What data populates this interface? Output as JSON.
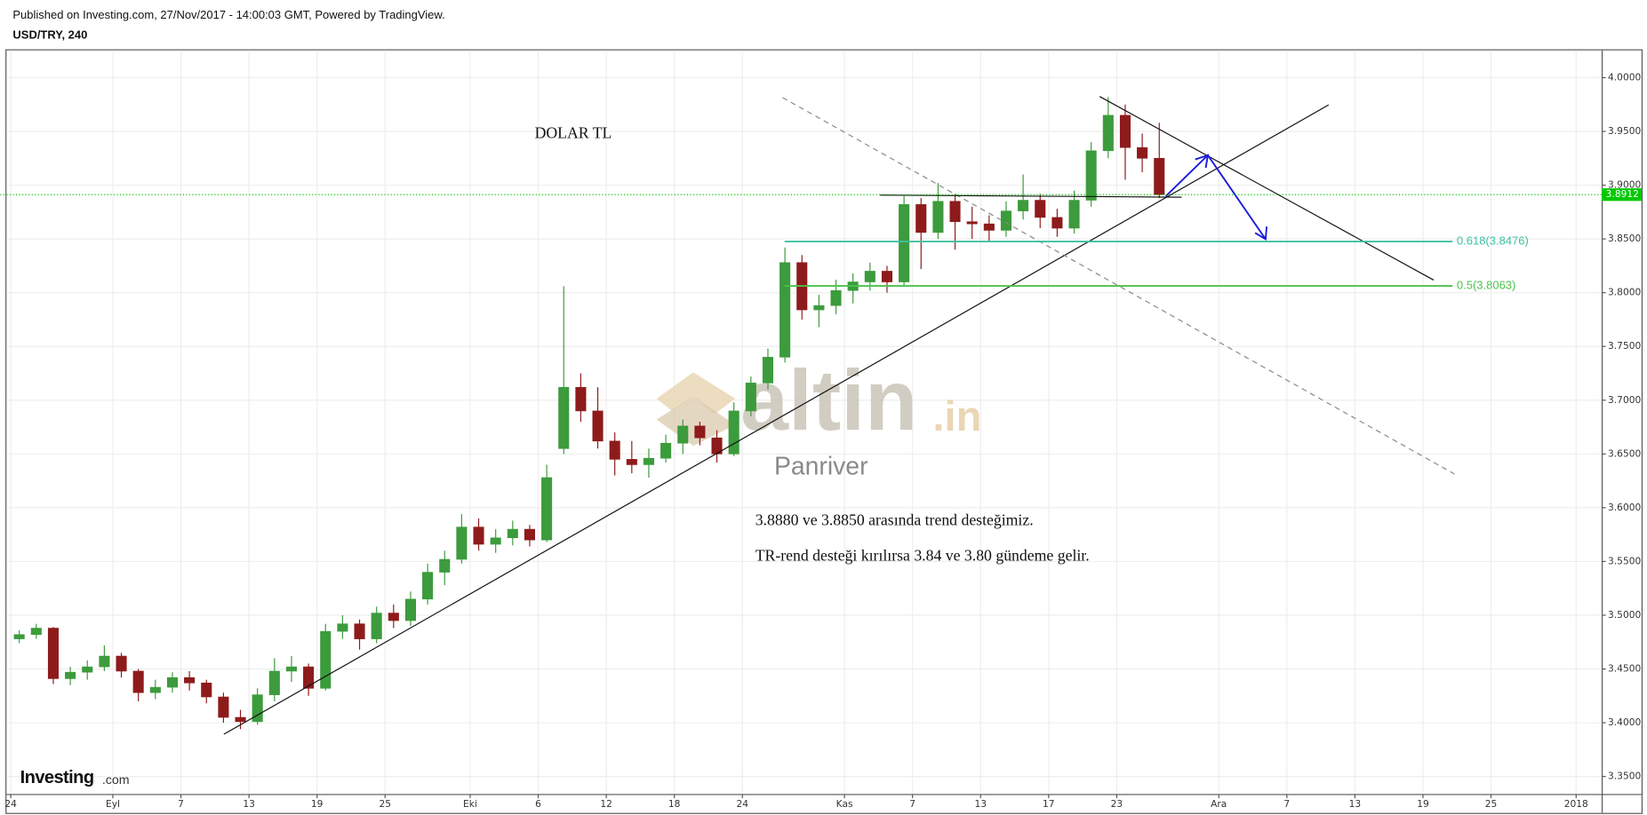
{
  "header": {
    "published": "Published on Investing.com, 27/Nov/2017 - 14:00:03 GMT, Powered by TradingView.",
    "symbol": "USD/TRY, 240"
  },
  "chart_data": {
    "type": "candlestick",
    "x": [
      0,
      1,
      2,
      3,
      4,
      5,
      6,
      7,
      8,
      9,
      10,
      11,
      12,
      13,
      14,
      15,
      16,
      17,
      18,
      19,
      20,
      21,
      22,
      23,
      24,
      25,
      26,
      27,
      28,
      29,
      30,
      31,
      32,
      33,
      34,
      35,
      36,
      37,
      38,
      39,
      40,
      41,
      42,
      43,
      44,
      45,
      46,
      47,
      48,
      49,
      50,
      51,
      52,
      53,
      54,
      55,
      56,
      57,
      58,
      59,
      60,
      61,
      62,
      63,
      64,
      65,
      66,
      67
    ],
    "open": [
      3.478,
      3.482,
      3.488,
      3.441,
      3.447,
      3.452,
      3.462,
      3.448,
      3.428,
      3.433,
      3.442,
      3.437,
      3.424,
      3.405,
      3.401,
      3.426,
      3.448,
      3.452,
      3.432,
      3.485,
      3.492,
      3.478,
      3.502,
      3.495,
      3.515,
      3.54,
      3.552,
      3.582,
      3.566,
      3.572,
      3.58,
      3.57,
      3.655,
      3.712,
      3.69,
      3.662,
      3.645,
      3.64,
      3.646,
      3.66,
      3.676,
      3.665,
      3.65,
      3.69,
      3.716,
      3.74,
      3.828,
      3.784,
      3.788,
      3.802,
      3.81,
      3.82,
      3.81,
      3.882,
      3.856,
      3.885,
      3.866,
      3.864,
      3.858,
      3.876,
      3.886,
      3.87,
      3.86,
      3.886,
      3.932,
      3.965,
      3.935,
      3.925
    ],
    "high": [
      3.486,
      3.492,
      3.489,
      3.452,
      3.458,
      3.472,
      3.465,
      3.45,
      3.44,
      3.447,
      3.448,
      3.44,
      3.428,
      3.412,
      3.432,
      3.46,
      3.462,
      3.455,
      3.492,
      3.5,
      3.496,
      3.508,
      3.51,
      3.522,
      3.548,
      3.56,
      3.594,
      3.59,
      3.58,
      3.588,
      3.584,
      3.64,
      3.806,
      3.725,
      3.712,
      3.67,
      3.662,
      3.655,
      3.668,
      3.682,
      3.68,
      3.672,
      3.698,
      3.722,
      3.748,
      3.842,
      3.835,
      3.798,
      3.812,
      3.818,
      3.828,
      3.825,
      3.89,
      3.888,
      3.902,
      3.892,
      3.88,
      3.872,
      3.885,
      3.91,
      3.892,
      3.878,
      3.895,
      3.94,
      3.982,
      3.975,
      3.948,
      3.958
    ],
    "low": [
      3.474,
      3.478,
      3.436,
      3.435,
      3.44,
      3.448,
      3.442,
      3.42,
      3.422,
      3.428,
      3.43,
      3.418,
      3.4,
      3.394,
      3.398,
      3.42,
      3.438,
      3.425,
      3.43,
      3.478,
      3.468,
      3.474,
      3.488,
      3.49,
      3.51,
      3.528,
      3.548,
      3.56,
      3.558,
      3.565,
      3.564,
      3.568,
      3.65,
      3.68,
      3.655,
      3.63,
      3.632,
      3.628,
      3.642,
      3.65,
      3.658,
      3.642,
      3.648,
      3.685,
      3.71,
      3.735,
      3.775,
      3.768,
      3.78,
      3.79,
      3.802,
      3.8,
      3.806,
      3.822,
      3.85,
      3.84,
      3.85,
      3.848,
      3.852,
      3.868,
      3.86,
      3.852,
      3.855,
      3.88,
      3.925,
      3.905,
      3.912,
      3.888
    ],
    "close": [
      3.482,
      3.488,
      3.441,
      3.447,
      3.452,
      3.462,
      3.448,
      3.428,
      3.433,
      3.442,
      3.437,
      3.424,
      3.405,
      3.401,
      3.426,
      3.448,
      3.452,
      3.432,
      3.485,
      3.492,
      3.478,
      3.502,
      3.495,
      3.515,
      3.54,
      3.552,
      3.582,
      3.566,
      3.572,
      3.58,
      3.57,
      3.628,
      3.712,
      3.69,
      3.662,
      3.645,
      3.64,
      3.646,
      3.66,
      3.676,
      3.665,
      3.65,
      3.69,
      3.716,
      3.74,
      3.828,
      3.784,
      3.788,
      3.802,
      3.81,
      3.82,
      3.81,
      3.882,
      3.856,
      3.885,
      3.866,
      3.864,
      3.858,
      3.876,
      3.886,
      3.87,
      3.86,
      3.886,
      3.932,
      3.965,
      3.935,
      3.925,
      3.8912
    ],
    "up_color": "#3c9b3c",
    "down_color": "#8e1b1b",
    "xlim": [
      -0.25,
      93.5
    ],
    "xticks": [
      {
        "value": 0,
        "label": "24"
      },
      {
        "value": 6,
        "label": "Eyl"
      },
      {
        "value": 10,
        "label": "7"
      },
      {
        "value": 14,
        "label": "13"
      },
      {
        "value": 18,
        "label": "19"
      },
      {
        "value": 22,
        "label": "25"
      },
      {
        "value": 27,
        "label": "Eki"
      },
      {
        "value": 31,
        "label": "6"
      },
      {
        "value": 35,
        "label": "12"
      },
      {
        "value": 39,
        "label": "18"
      },
      {
        "value": 43,
        "label": "24"
      },
      {
        "value": 49,
        "label": "Kas"
      },
      {
        "value": 53,
        "label": "7"
      },
      {
        "value": 57,
        "label": "13"
      },
      {
        "value": 61,
        "label": "17"
      },
      {
        "value": 65,
        "label": "23"
      },
      {
        "value": 71,
        "label": "Ara"
      },
      {
        "value": 75,
        "label": "7"
      },
      {
        "value": 79,
        "label": "13"
      },
      {
        "value": 83,
        "label": "19"
      },
      {
        "value": 87,
        "label": "25"
      },
      {
        "value": 92,
        "label": "2018"
      }
    ],
    "ylim": [
      3.3337,
      4.0254
    ],
    "yticks": [
      {
        "value": 3.35,
        "label": "3.3500"
      },
      {
        "value": 3.4,
        "label": "3.4000"
      },
      {
        "value": 3.45,
        "label": "3.4500"
      },
      {
        "value": 3.5,
        "label": "3.5000"
      },
      {
        "value": 3.55,
        "label": "3.5500"
      },
      {
        "value": 3.6,
        "label": "3.6000"
      },
      {
        "value": 3.65,
        "label": "3.6500"
      },
      {
        "value": 3.7,
        "label": "3.7000"
      },
      {
        "value": 3.75,
        "label": "3.7500"
      },
      {
        "value": 3.8,
        "label": "3.8000"
      },
      {
        "value": 3.85,
        "label": "3.8500"
      },
      {
        "value": 3.9,
        "label": "3.9000"
      },
      {
        "value": 3.95,
        "label": "3.9500"
      },
      {
        "value": 4.0,
        "label": "4.0000"
      }
    ],
    "grid": true,
    "last_price": {
      "value": 3.8912,
      "color": "#00c800"
    },
    "fib_levels": [
      {
        "value": 3.8476,
        "label": "0.618(3.8476)",
        "color": "#3fc0a0"
      },
      {
        "value": 3.8063,
        "label": "0.5(3.8063)",
        "color": "#4cc24c"
      }
    ],
    "annotations": [
      "DOLAR TL",
      "3.8880 ve 3.8850 arasında trend desteğimiz.",
      "TR-rend desteği kırılırsa 3.84 ve 3.80 gündeme gelir."
    ],
    "watermark": {
      "brand": "altin",
      "domain": ".in",
      "author": "Panriver"
    },
    "logo": {
      "brand": "Investing",
      "domain": ".com"
    }
  }
}
